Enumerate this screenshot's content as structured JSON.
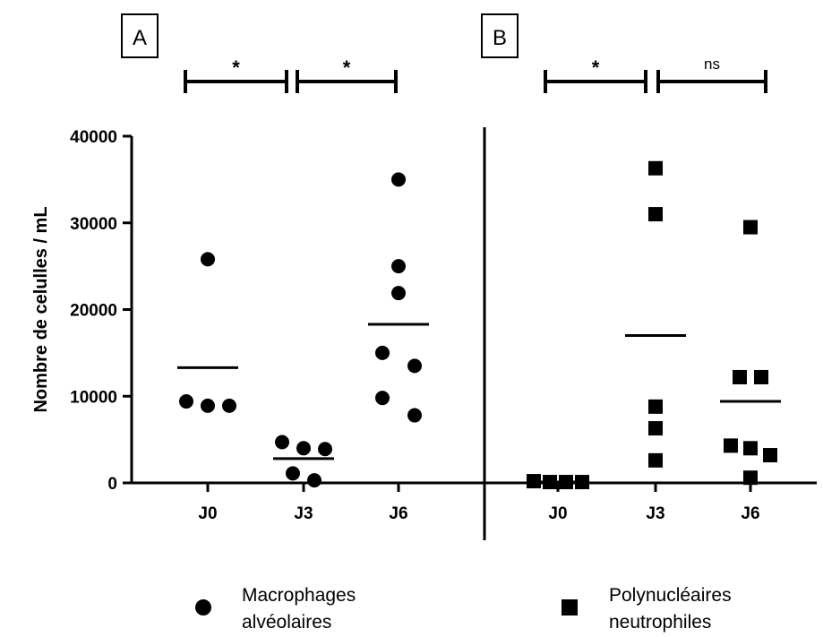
{
  "chart_data": {
    "type": "scatter",
    "ylabel": "Nombre de celulles / mL",
    "ylim": [
      0,
      40000
    ],
    "yticks": [
      0,
      10000,
      20000,
      30000,
      40000
    ],
    "ytick_labels": [
      "0",
      "10000",
      "20000",
      "30000",
      "40000"
    ],
    "grid": false,
    "legend": {
      "position": "bottom"
    },
    "panels": [
      {
        "label": "A",
        "series_name_lines": [
          "Macrophages",
          "alvéolaires"
        ],
        "marker": "circle",
        "categories": [
          "J0",
          "J3",
          "J6"
        ],
        "points": [
          [
            25800,
            9400,
            8900,
            8900
          ],
          [
            4700,
            4000,
            3900,
            1100,
            300
          ],
          [
            35000,
            25000,
            21900,
            15000,
            13500,
            9800,
            7800
          ]
        ],
        "means": [
          13300,
          2800,
          18300
        ],
        "significance": [
          {
            "from": "J0",
            "to": "J3",
            "label": "*"
          },
          {
            "from": "J3",
            "to": "J6",
            "label": "*"
          }
        ]
      },
      {
        "label": "B",
        "series_name_lines": [
          "Polynucléaires",
          "neutrophiles"
        ],
        "marker": "square",
        "categories": [
          "J0",
          "J3",
          "J6"
        ],
        "points": [
          [
            200,
            100,
            100,
            100
          ],
          [
            36300,
            31000,
            8800,
            6300,
            2600
          ],
          [
            29500,
            12200,
            12200,
            4300,
            4000,
            3200,
            600
          ]
        ],
        "means": [
          100,
          17000,
          9400
        ],
        "significance": [
          {
            "from": "J0",
            "to": "J3",
            "label": "*"
          },
          {
            "from": "J3",
            "to": "J6",
            "label": "ns"
          }
        ]
      }
    ]
  }
}
